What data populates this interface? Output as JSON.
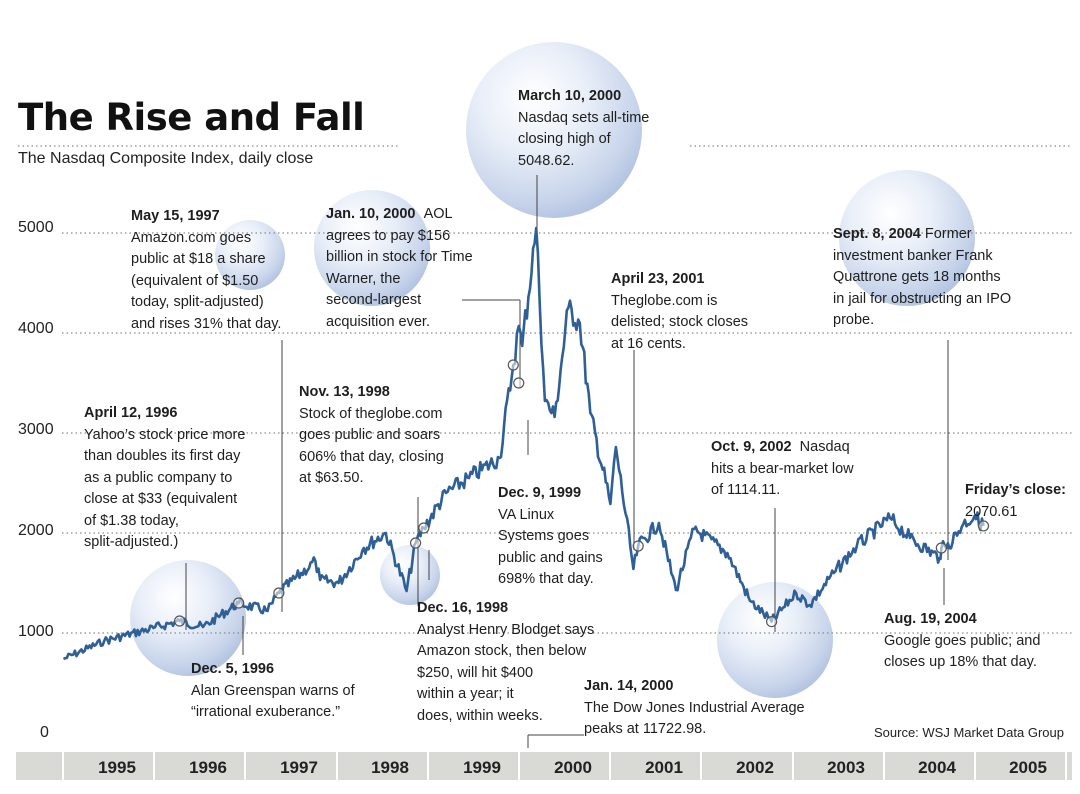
{
  "title": "The Rise and Fall",
  "subtitle": "The Nasdaq Composite Index, daily close",
  "source": "Source: WSJ Market Data Group",
  "chart_data": {
    "type": "line",
    "title": "The Rise and Fall",
    "subtitle": "The Nasdaq Composite Index, daily close",
    "ylim": [
      0,
      5000
    ],
    "yticks": [
      "5000",
      "4000",
      "3000",
      "2000",
      "1000",
      "0"
    ],
    "xlabels": [
      "1995",
      "1996",
      "1997",
      "1998",
      "1999",
      "2000",
      "2001",
      "2002",
      "2003",
      "2004",
      "2005"
    ],
    "grid": "horizontal dotted",
    "series": [
      {
        "color": "#2e5f96",
        "x": [
          "1995-01-03",
          "1995-06-15",
          "1995-12-29",
          "1996-04-12",
          "1996-07-15",
          "1996-12-05",
          "1997-03-31",
          "1997-05-15",
          "1997-10-08",
          "1997-10-27",
          "1998-01-09",
          "1998-04-20",
          "1998-07-17",
          "1998-10-08",
          "1998-11-13",
          "1998-12-16",
          "1999-03-15",
          "1999-06-15",
          "1999-10-15",
          "1999-12-09",
          "1999-12-31",
          "2000-01-14",
          "2000-03-10",
          "2000-04-14",
          "2000-05-23",
          "2000-07-17",
          "2000-09-01",
          "2000-10-13",
          "2001-01-02",
          "2001-01-24",
          "2001-04-04",
          "2001-04-23",
          "2001-07-15",
          "2001-09-21",
          "2001-12-03",
          "2002-04-15",
          "2002-07-15",
          "2002-10-09",
          "2003-01-15",
          "2003-03-11",
          "2003-06-15",
          "2003-09-15",
          "2004-01-26",
          "2004-04-15",
          "2004-08-12",
          "2004-08-19",
          "2004-09-08",
          "2004-11-15",
          "2004-12-30",
          "2005-02-04"
        ],
        "y": [
          740,
          920,
          1050,
          1120,
          1060,
          1300,
          1220,
          1400,
          1720,
          1530,
          1500,
          1850,
          2000,
          1420,
          1900,
          2050,
          2400,
          2550,
          2750,
          3680,
          4070,
          3870,
          5048.62,
          3320,
          3160,
          4250,
          4100,
          3200,
          2290,
          2860,
          1640,
          1870,
          2100,
          1430,
          2040,
          1800,
          1320,
          1114.11,
          1400,
          1280,
          1600,
          1870,
          2150,
          1950,
          1750,
          1850,
          1850,
          2090,
          2170,
          2070.61
        ]
      }
    ],
    "annotations": [
      {
        "date": "March 10, 2000",
        "text": "Nasdaq sets all-time closing high of 5048.62."
      },
      {
        "date": "May 15, 1997",
        "text": "Amazon.com goes public at $18 a share (equivalent of $1.50 today, split-adjusted) and rises 31% that day."
      },
      {
        "date": "Jan. 10, 2000",
        "text": "AOL agrees to pay $156 billion in stock for Time Warner, the second-largest acquisition ever."
      },
      {
        "date": "April 23, 2001",
        "text": "Theglobe.com is delisted; stock closes at 16 cents."
      },
      {
        "date": "Sept. 8, 2004",
        "text": "Former investment banker Frank Quattrone gets 18 months in jail for obstructing an IPO probe."
      },
      {
        "date": "April 12, 1996",
        "text": "Yahoo's stock price more than doubles its first day as a public company to close at $33 (equivalent of $1.38 today, split-adjusted.)"
      },
      {
        "date": "Nov. 13, 1998",
        "text": "Stock of theglobe.com goes public and soars 606% that day, closing at $63.50."
      },
      {
        "date": "Oct. 9, 2002",
        "text": "Nasdaq hits a bear-market low of 1114.11."
      },
      {
        "date": "Friday's close:",
        "text": "2070.61"
      },
      {
        "date": "Dec. 9, 1999",
        "text": "VA Linux Systems goes public and gains 698% that day."
      },
      {
        "date": "Dec. 5, 1996",
        "text": "Alan Greenspan warns of “irrational exuberance.”"
      },
      {
        "date": "Dec. 16, 1998",
        "text": "Analyst Henry Blodget says Amazon stock, then below $250, will hit $400 within a year; it does, within weeks."
      },
      {
        "date": "Jan. 14, 2000",
        "text": "The Dow Jones Industrial Average peaks at 11722.98."
      },
      {
        "date": "Aug. 19, 2004",
        "text": "Google goes public; and closes up 18% that day."
      }
    ]
  },
  "notes": {
    "mar2000": {
      "date": "March 10, 2000",
      "lines": [
        "Nasdaq sets all-time",
        "closing high of",
        "5048.62."
      ]
    },
    "may1997": {
      "date": "May 15, 1997",
      "lines": [
        "Amazon.com goes",
        "public at $18 a share",
        "(equivalent of $1.50",
        "today, split-adjusted)",
        "and rises 31% that day."
      ]
    },
    "jan2000a": {
      "date": "Jan. 10, 2000",
      "lines": [
        "AOL",
        "agrees to pay $156",
        "billion in stock for Time",
        "Warner, the",
        "second-largest",
        "acquisition ever."
      ]
    },
    "apr2001": {
      "date": "April 23, 2001",
      "lines": [
        "Theglobe.com is",
        "delisted; stock closes",
        "at 16 cents."
      ]
    },
    "sep2004": {
      "date": "Sept. 8, 2004",
      "lines": [
        "Former",
        "investment banker Frank",
        "Quattrone gets 18 months",
        "in jail for obstructing an IPO",
        "probe."
      ]
    },
    "apr1996": {
      "date": "April 12, 1996",
      "lines": [
        "Yahoo’s stock price more",
        "than doubles its first day",
        "as a public company to",
        "close at $33 (equivalent",
        "of $1.38 today,",
        "split-adjusted.)"
      ]
    },
    "nov1998": {
      "date": "Nov. 13, 1998",
      "lines": [
        "Stock of theglobe.com",
        "goes public and soars",
        "606% that day, closing",
        "at $63.50."
      ]
    },
    "oct2002": {
      "date": "Oct. 9, 2002",
      "lines": [
        "Nasdaq",
        "hits a bear-market low",
        "of 1114.11."
      ]
    },
    "friday": {
      "date": "Friday’s close:",
      "lines": [
        "2070.61"
      ]
    },
    "dec1999": {
      "date": "Dec. 9, 1999",
      "lines": [
        "VA Linux",
        "Systems  goes",
        "public and gains",
        "698% that day."
      ]
    },
    "dec1996": {
      "date": "Dec. 5, 1996",
      "lines": [
        "Alan Greenspan warns of",
        "“irrational exuberance.”"
      ]
    },
    "dec1998": {
      "date": "Dec. 16, 1998",
      "lines": [
        "Analyst Henry Blodget says",
        "Amazon stock, then below",
        "$250, will hit $400",
        "within a year; it",
        "does, within weeks."
      ]
    },
    "jan2000b": {
      "date": "Jan. 14, 2000",
      "lines": [
        "The Dow Jones Industrial Average",
        "peaks at 11722.98."
      ]
    },
    "aug2004": {
      "date": "Aug. 19, 2004",
      "lines": [
        "Google goes public; and",
        "closes up 18% that day."
      ]
    }
  }
}
